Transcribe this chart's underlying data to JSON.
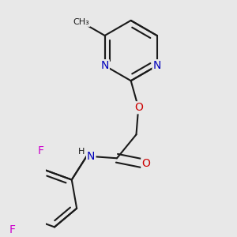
{
  "background_color": "#e8e8e8",
  "bond_color": "#1a1a1a",
  "bond_width": 1.5,
  "atom_colors": {
    "N": "#0000bb",
    "O": "#cc0000",
    "F": "#cc00cc",
    "C": "#1a1a1a"
  },
  "font_size": 10,
  "font_size_small": 9
}
